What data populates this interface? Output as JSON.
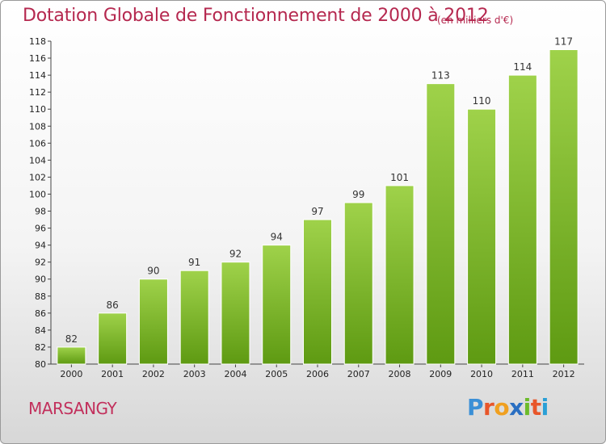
{
  "header": {
    "title": "Dotation Globale de Fonctionnement de 2000 à 2012",
    "subtitle": "(en milliers d'€)"
  },
  "place": "MARSANGY",
  "logo": {
    "letters": [
      "P",
      "r",
      "o",
      "x",
      "i",
      "t",
      "i"
    ],
    "colors": [
      "#3a8fd6",
      "#e8562a",
      "#f0a020",
      "#2a6fc2",
      "#6cbb2a",
      "#e8562a",
      "#2a9fd6"
    ]
  },
  "chart_data": {
    "type": "bar",
    "categories": [
      "2000",
      "2001",
      "2002",
      "2003",
      "2004",
      "2005",
      "2006",
      "2007",
      "2008",
      "2009",
      "2010",
      "2011",
      "2012"
    ],
    "values": [
      82,
      86,
      90,
      91,
      92,
      94,
      97,
      99,
      101,
      113,
      110,
      114,
      117
    ],
    "ylim": [
      80,
      118
    ],
    "yticks": [
      80,
      82,
      84,
      86,
      88,
      90,
      92,
      94,
      96,
      98,
      100,
      102,
      104,
      106,
      108,
      110,
      112,
      114,
      116,
      118
    ],
    "grid": false,
    "bar_color": "#7cbc2e"
  }
}
